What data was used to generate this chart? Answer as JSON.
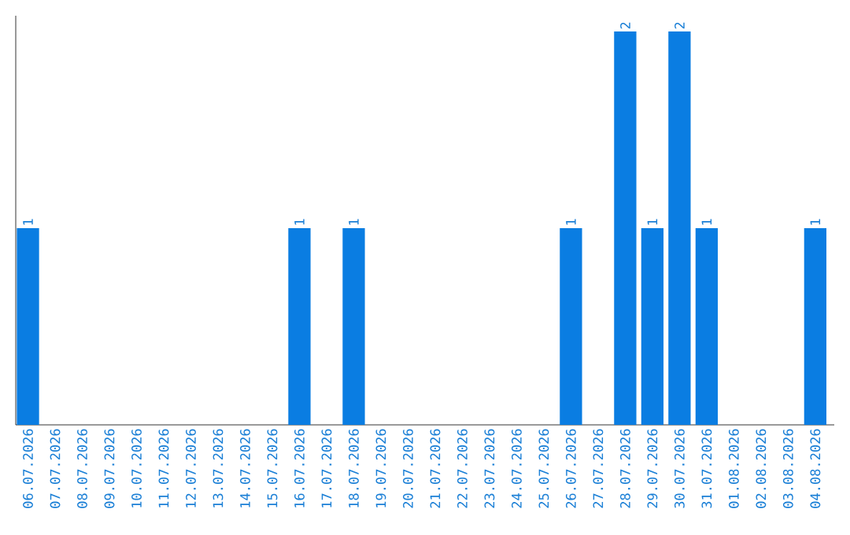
{
  "chart_data": {
    "type": "bar",
    "categories": [
      "06.07.2026",
      "07.07.2026",
      "08.07.2026",
      "09.07.2026",
      "10.07.2026",
      "11.07.2026",
      "12.07.2026",
      "13.07.2026",
      "14.07.2026",
      "15.07.2026",
      "16.07.2026",
      "17.07.2026",
      "18.07.2026",
      "19.07.2026",
      "20.07.2026",
      "21.07.2026",
      "22.07.2026",
      "23.07.2026",
      "24.07.2026",
      "25.07.2026",
      "26.07.2026",
      "27.07.2026",
      "28.07.2026",
      "29.07.2026",
      "30.07.2026",
      "31.07.2026",
      "01.08.2026",
      "02.08.2026",
      "03.08.2026",
      "04.08.2026"
    ],
    "values": [
      1,
      0,
      0,
      0,
      0,
      0,
      0,
      0,
      0,
      0,
      1,
      0,
      1,
      0,
      0,
      0,
      0,
      0,
      0,
      0,
      1,
      0,
      2,
      1,
      2,
      1,
      0,
      0,
      0,
      1
    ],
    "value_labels": [
      "1",
      null,
      null,
      null,
      null,
      null,
      null,
      null,
      null,
      null,
      "1",
      null,
      "1",
      null,
      null,
      null,
      null,
      null,
      null,
      null,
      "1",
      null,
      "2",
      "1",
      "2",
      "1",
      null,
      null,
      null,
      "1"
    ],
    "color": "#0a7de2",
    "ylim": [
      0,
      2.08
    ],
    "tick_labels": "x"
  }
}
